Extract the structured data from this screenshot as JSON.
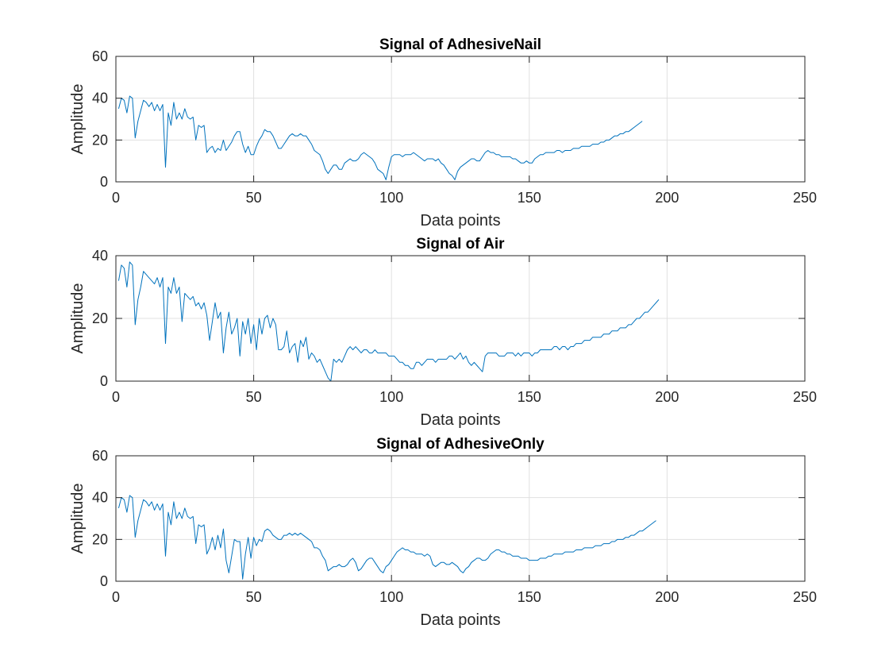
{
  "chart_data": [
    {
      "type": "line",
      "title": "Signal of AdhesiveNail",
      "xlabel": "Data points",
      "ylabel": "Amplitude",
      "xlim": [
        0,
        250
      ],
      "ylim": [
        0,
        60
      ],
      "xticks": [
        0,
        50,
        100,
        150,
        200,
        250
      ],
      "yticks": [
        0,
        20,
        40,
        60
      ],
      "grid": true,
      "color": "#0072BD",
      "x_start": 1,
      "values": [
        35,
        40,
        39,
        33,
        41,
        40,
        21,
        29,
        34,
        39,
        38,
        36,
        38,
        34,
        37,
        34,
        37,
        7,
        33,
        27,
        38,
        30,
        33,
        30,
        35,
        31,
        30,
        31,
        20,
        27,
        26,
        27,
        14,
        16,
        17,
        14,
        16,
        15,
        20,
        15,
        17,
        19,
        22,
        24,
        24,
        18,
        14,
        17,
        13,
        13,
        17,
        20,
        22,
        25,
        24,
        24,
        22,
        19,
        16,
        16,
        18,
        20,
        22,
        23,
        22,
        22,
        23,
        22,
        22,
        20,
        18,
        15,
        14,
        13,
        10,
        6,
        4,
        6,
        8,
        8,
        6,
        6,
        9,
        10,
        11,
        10,
        10,
        11,
        13,
        14,
        13,
        12,
        11,
        9,
        6,
        5,
        4,
        1,
        7,
        12,
        13,
        13,
        13,
        12,
        13,
        13,
        13,
        14,
        13,
        12,
        11,
        10,
        11,
        11,
        11,
        10,
        11,
        9,
        8,
        6,
        4,
        3,
        1,
        5,
        7,
        8,
        9,
        10,
        11,
        11,
        10,
        10,
        12,
        14,
        15,
        14,
        14,
        13,
        13,
        12,
        12,
        12,
        12,
        11,
        11,
        10,
        9,
        9,
        10,
        9,
        9,
        11,
        12,
        13,
        13,
        14,
        14,
        14,
        14,
        15,
        15,
        14,
        15,
        15,
        15,
        16,
        16,
        16,
        17,
        17,
        17,
        17,
        18,
        18,
        18,
        19,
        19,
        20,
        20,
        21,
        22,
        22,
        23,
        23,
        24,
        24,
        25,
        26,
        27,
        28,
        29
      ]
    },
    {
      "type": "line",
      "title": "Signal of Air",
      "xlabel": "Data points",
      "ylabel": "Amplitude",
      "xlim": [
        0,
        250
      ],
      "ylim": [
        0,
        40
      ],
      "xticks": [
        0,
        50,
        100,
        150,
        200,
        250
      ],
      "yticks": [
        0,
        20,
        40
      ],
      "grid": true,
      "color": "#0072BD",
      "x_start": 1,
      "values": [
        32,
        37,
        36,
        30,
        38,
        37,
        18,
        26,
        30,
        35,
        34,
        33,
        32,
        31,
        33,
        30,
        33,
        12,
        30,
        28,
        33,
        28,
        30,
        19,
        28,
        27,
        26,
        27,
        24,
        25,
        23,
        25,
        21,
        13,
        19,
        25,
        20,
        22,
        9,
        17,
        22,
        15,
        17,
        20,
        8,
        19,
        15,
        20,
        12,
        18,
        10,
        20,
        15,
        20,
        21,
        17,
        20,
        18,
        10,
        10,
        11,
        16,
        9,
        11,
        12,
        6,
        13,
        11,
        14,
        7,
        9,
        8,
        6,
        7,
        5,
        3,
        1,
        0,
        7,
        6,
        7,
        6,
        8,
        10,
        11,
        10,
        11,
        10,
        9,
        10,
        10,
        9,
        9,
        10,
        9,
        9,
        9,
        9,
        8,
        8,
        8,
        7,
        6,
        6,
        5,
        5,
        4,
        4,
        6,
        6,
        5,
        6,
        7,
        7,
        7,
        6,
        7,
        7,
        7,
        7,
        8,
        8,
        7,
        8,
        9,
        7,
        8,
        6,
        5,
        6,
        5,
        4,
        3,
        8,
        9,
        9,
        9,
        9,
        8,
        8,
        8,
        9,
        9,
        9,
        8,
        9,
        8,
        9,
        9,
        9,
        8,
        9,
        9,
        10,
        10,
        10,
        10,
        10,
        11,
        11,
        10,
        11,
        11,
        10,
        11,
        11,
        12,
        12,
        12,
        13,
        13,
        13,
        14,
        14,
        14,
        14,
        15,
        15,
        15,
        16,
        16,
        16,
        17,
        17,
        17,
        18,
        18,
        19,
        20,
        20,
        21,
        22,
        22,
        23,
        24,
        25,
        26
      ]
    },
    {
      "type": "line",
      "title": "Signal of AdhesiveOnly",
      "xlabel": "Data points",
      "ylabel": "Amplitude",
      "xlim": [
        0,
        250
      ],
      "ylim": [
        0,
        60
      ],
      "xticks": [
        0,
        50,
        100,
        150,
        200,
        250
      ],
      "yticks": [
        0,
        20,
        40,
        60
      ],
      "grid": true,
      "color": "#0072BD",
      "x_start": 1,
      "values": [
        35,
        40,
        39,
        33,
        41,
        40,
        21,
        29,
        34,
        39,
        38,
        36,
        38,
        34,
        37,
        34,
        37,
        12,
        33,
        27,
        38,
        30,
        33,
        30,
        35,
        31,
        30,
        31,
        18,
        27,
        26,
        27,
        13,
        16,
        21,
        15,
        22,
        16,
        25,
        10,
        4,
        12,
        20,
        19,
        19,
        1,
        13,
        21,
        11,
        21,
        17,
        20,
        19,
        24,
        25,
        24,
        22,
        21,
        20,
        20,
        22,
        22,
        23,
        22,
        23,
        22,
        23,
        22,
        21,
        20,
        19,
        16,
        16,
        15,
        12,
        10,
        5,
        6,
        7,
        7,
        8,
        7,
        7,
        8,
        10,
        11,
        9,
        5,
        6,
        8,
        10,
        11,
        11,
        9,
        7,
        5,
        4,
        7,
        8,
        10,
        12,
        14,
        15,
        16,
        15,
        15,
        14,
        14,
        13,
        13,
        13,
        12,
        13,
        12,
        8,
        7,
        8,
        9,
        9,
        8,
        8,
        9,
        8,
        7,
        5,
        4,
        6,
        7,
        9,
        10,
        11,
        11,
        10,
        10,
        11,
        13,
        14,
        15,
        15,
        14,
        14,
        13,
        13,
        12,
        12,
        12,
        11,
        11,
        11,
        10,
        10,
        10,
        10,
        11,
        11,
        11,
        12,
        12,
        13,
        13,
        13,
        13,
        14,
        14,
        14,
        14,
        15,
        15,
        15,
        16,
        16,
        16,
        16,
        17,
        17,
        17,
        18,
        18,
        18,
        19,
        19,
        20,
        20,
        20,
        21,
        21,
        22,
        22,
        23,
        24,
        24,
        25,
        26,
        27,
        28,
        29
      ]
    }
  ]
}
